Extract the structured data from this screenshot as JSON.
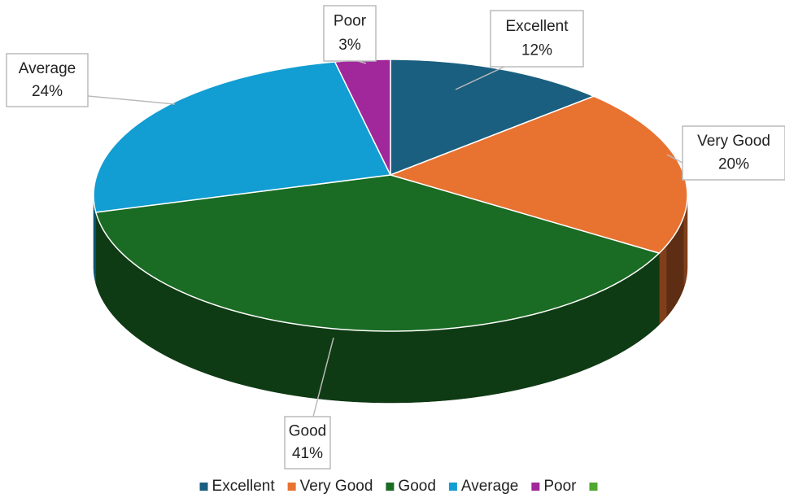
{
  "chart_data": {
    "type": "pie",
    "categories": [
      "Excellent",
      "Very Good",
      "Good",
      "Average",
      "Poor",
      null
    ],
    "values": [
      12,
      20,
      41,
      24,
      3,
      null
    ],
    "value_labels": [
      "12%",
      "20%",
      "41%",
      "24%",
      "3%",
      null
    ],
    "colors": [
      "#1a5f80",
      "#e87230",
      "#1a6b23",
      "#129dd3",
      "#a0289a",
      "#4ea72e"
    ],
    "legend": "bottom"
  }
}
